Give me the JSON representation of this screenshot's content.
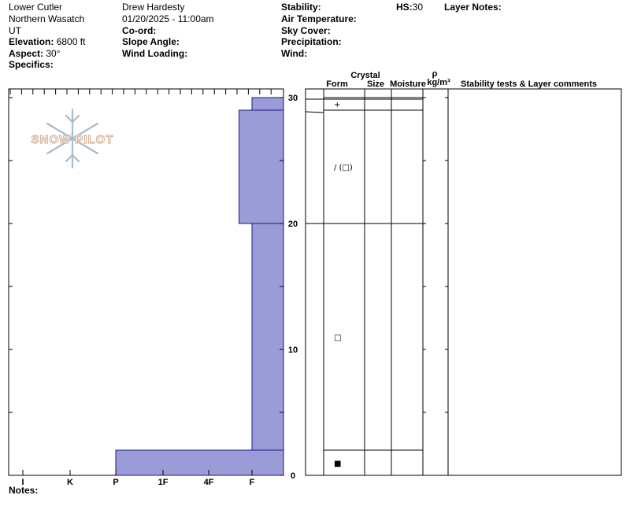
{
  "header": {
    "location": "Lower Cutler",
    "range": "Northern Wasatch",
    "state": "UT",
    "elevation_label": "Elevation:",
    "elevation_value": "6800 ft",
    "aspect_label": "Aspect:",
    "aspect_value": "30°",
    "specifics_label": "Specifics:",
    "observer": "Drew Hardesty",
    "datetime": "01/20/2025 - 11:00am",
    "coord_label": "Co-ord:",
    "slope_label": "Slope Angle:",
    "wind_loading_label": "Wind Loading:",
    "stability_label": "Stability:",
    "air_temp_label": "Air Temperature:",
    "sky_label": "Sky Cover:",
    "precip_label": "Precipitation:",
    "wind_label": "Wind:",
    "hs_label": "HS:",
    "hs_value": "30",
    "layer_notes_label": "Layer Notes:"
  },
  "logo": {
    "text": "SNOW PILOT",
    "color": "#d9b8a0",
    "flake_color": "#a9bccb"
  },
  "notes_label": "Notes:",
  "table_headers": {
    "form": "Form",
    "crystal": "Crystal",
    "size": "Size",
    "moisture": "Moisture",
    "rho": "ρ",
    "density_unit": "kg/m³",
    "comments": "Stability tests & Layer comments"
  },
  "chart_data": {
    "type": "bar",
    "orientation": "horizontal",
    "description_axis": "hardness profile",
    "hardness_ticks": [
      "I",
      "K",
      "P",
      "1F",
      "4F",
      "F"
    ],
    "y_ticks": [
      "0",
      "10",
      "20",
      "30"
    ],
    "ylim": [
      0,
      30
    ],
    "fill_color": "#9b9bd8",
    "stroke_color": "#1a1a8c",
    "layers": [
      {
        "top": 30,
        "bottom": 29,
        "hardness_index": 5,
        "hardness": "F",
        "grain_form": "+"
      },
      {
        "top": 29,
        "bottom": 20,
        "hardness_index": 4.7,
        "hardness": "F",
        "grain_form": "/ (□)"
      },
      {
        "top": 20,
        "bottom": 2,
        "hardness_index": 5,
        "hardness": "F",
        "grain_form": "□"
      },
      {
        "top": 2,
        "bottom": 0,
        "hardness_index": 2,
        "hardness": "P",
        "grain_form": "■"
      }
    ]
  }
}
